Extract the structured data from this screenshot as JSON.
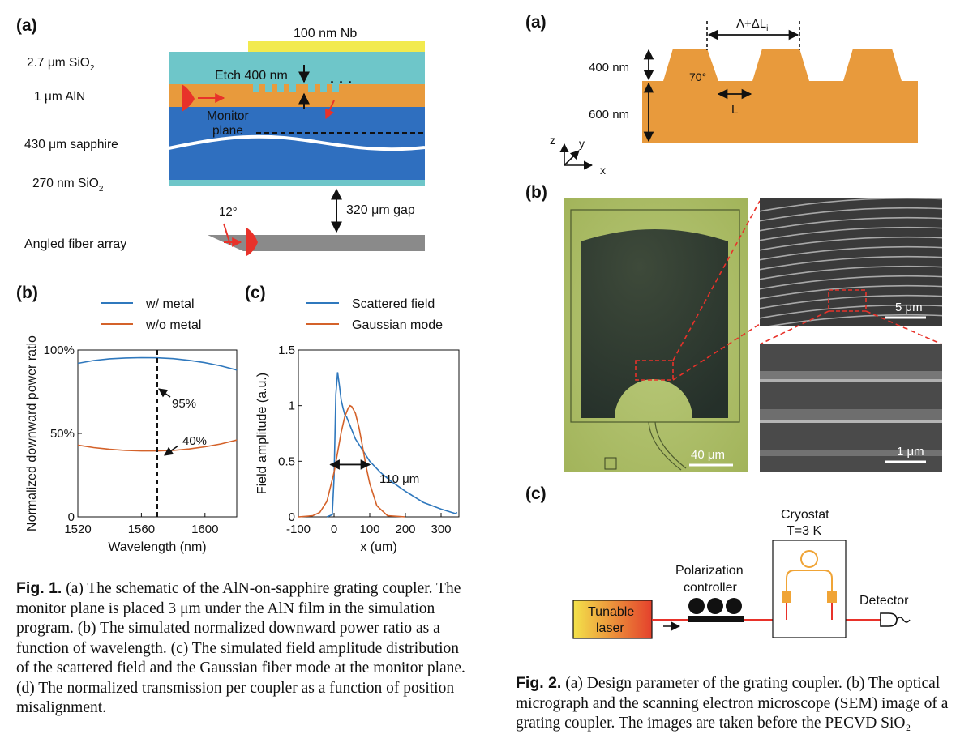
{
  "fig1": {
    "a": {
      "panel_label": "(a)",
      "nb_label": "100 nm Nb",
      "sio2_top_label": "2.7 μm SiO",
      "aln_label": "1 μm AlN",
      "sapphire_label": "430 μm  sapphire",
      "sio2_bottom_label": "270 nm SiO",
      "sub2": "2",
      "etch_label": "Etch 400 nm",
      "monitor_label_1": "Monitor",
      "monitor_label_2": "plane",
      "dots": "· · ·",
      "gap_label": "320 μm gap",
      "angle_label": "12°",
      "fiber_label": "Angled fiber array"
    },
    "b": {
      "panel_label": "(b)",
      "annot_95": "95%",
      "annot_40": "40%"
    },
    "c": {
      "panel_label": "(c)",
      "annot_width": "110 μm"
    },
    "caption_label": "Fig. 1.",
    "caption_text": " (a) The schematic of the AlN-on-sapphire grating coupler. The monitor plane is placed 3 μm under the AlN film in the simulation program. (b) The simulated normalized downward power ratio as a function of wavelength. (c) The simulated field amplitude distribution of the scattered field and the Gaussian fiber mode at the monitor plane. (d) The normalized transmission per coupler as a function of position misalignment."
  },
  "fig2": {
    "a": {
      "panel_label": "(a)",
      "period_label": "Λ+ΔL",
      "period_sub": "i",
      "h400_label": "400 nm",
      "h600_label": "600 nm",
      "angle_label": "70°",
      "li_label": "L",
      "li_sub": "i",
      "axis_z": "z",
      "axis_y": "y",
      "axis_x": "x"
    },
    "b": {
      "panel_label": "(b)",
      "scale_40": "40 μm",
      "scale_5": "5 μm",
      "scale_1": "1 μm"
    },
    "c": {
      "panel_label": "(c)",
      "cryostat_label": "Cryostat",
      "temp_label": "T=3 K",
      "polarization_label_1": "Polarization",
      "polarization_label_2": "controller",
      "laser_label_1": "Tunable",
      "laser_label_2": "laser",
      "detector_label": "Detector"
    },
    "caption_label": "Fig. 2.",
    "caption_text": " (a) Design parameter of the grating coupler. (b) The optical micrograph and the scanning electron microscope (SEM) image of a grating coupler. The images are taken before the PECVD SiO₂"
  },
  "chart_data": [
    {
      "type": "line",
      "panel": "1(b)",
      "xlabel": "Wavelength (nm)",
      "ylabel": "Normalized downward power ratio",
      "xlim": [
        1520,
        1620
      ],
      "ylim": [
        0,
        1.0
      ],
      "xticks": [
        1520,
        1560,
        1600
      ],
      "yticks": [
        0,
        0.5,
        1.0
      ],
      "ytick_labels": [
        "0",
        "50%",
        "100%"
      ],
      "legend_position": "top",
      "vline_x": 1570,
      "x": [
        1520,
        1530,
        1540,
        1550,
        1560,
        1570,
        1580,
        1590,
        1600,
        1610,
        1620
      ],
      "series": [
        {
          "name": "w/ metal",
          "color": "#2f78bd",
          "values": [
            0.92,
            0.937,
            0.947,
            0.952,
            0.954,
            0.953,
            0.948,
            0.938,
            0.924,
            0.905,
            0.88
          ]
        },
        {
          "name": "w/o metal",
          "color": "#d4622a",
          "values": [
            0.43,
            0.415,
            0.405,
            0.398,
            0.395,
            0.395,
            0.398,
            0.407,
            0.42,
            0.437,
            0.46
          ]
        }
      ]
    },
    {
      "type": "line",
      "panel": "1(c)",
      "xlabel": "x (um)",
      "ylabel": "Field amplitude (a.u.)",
      "xlim": [
        -100,
        350
      ],
      "ylim": [
        0,
        1.5
      ],
      "xticks": [
        -100,
        0,
        100,
        200,
        300
      ],
      "yticks": [
        0,
        0.5,
        1,
        1.5
      ],
      "legend_position": "top",
      "series": [
        {
          "name": "Scattered field",
          "color": "#2f78bd",
          "x": [
            -20,
            -5,
            0,
            5,
            10,
            15,
            20,
            25,
            30,
            35,
            40,
            50,
            60,
            80,
            100,
            130,
            160,
            200,
            250,
            300,
            340,
            345
          ],
          "values": [
            0.0,
            0.02,
            0.35,
            1.1,
            1.3,
            1.18,
            1.05,
            0.98,
            0.92,
            0.9,
            0.86,
            0.78,
            0.7,
            0.6,
            0.5,
            0.4,
            0.32,
            0.23,
            0.13,
            0.07,
            0.03,
            0.04
          ]
        },
        {
          "name": "Gaussian mode",
          "color": "#d4622a",
          "x": [
            -100,
            -60,
            -40,
            -20,
            0,
            10,
            20,
            30,
            40,
            45,
            50,
            60,
            70,
            80,
            90,
            100,
            120,
            150,
            200
          ],
          "values": [
            0.0,
            0.01,
            0.04,
            0.14,
            0.4,
            0.58,
            0.76,
            0.9,
            0.98,
            1.0,
            0.99,
            0.93,
            0.8,
            0.63,
            0.45,
            0.3,
            0.1,
            0.01,
            0.0
          ]
        }
      ],
      "annotation": {
        "text": "110 μm",
        "x0": -10,
        "x1": 100,
        "y": 0.47
      }
    }
  ]
}
